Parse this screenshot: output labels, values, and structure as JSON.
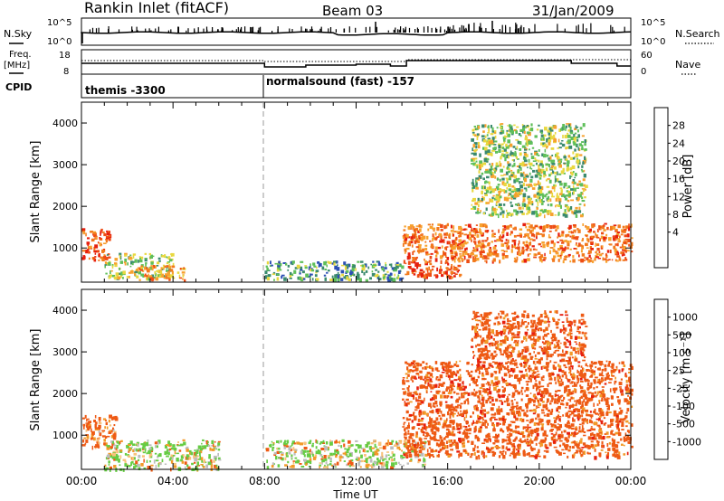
{
  "header": {
    "station": "Rankin Inlet (fitACF)",
    "beam": "Beam 03",
    "date": "31/Jan/2009"
  },
  "nsky_panel": {
    "left_label": "N.Sky",
    "left_ticks": [
      "10^5",
      "10^0"
    ],
    "right_ticks": [
      "10^5",
      "10^0"
    ],
    "right_label": "N.Search"
  },
  "freq_panel": {
    "left_label_1": "Freq.",
    "left_label_2": "[MHz]",
    "left_ticks": [
      "18",
      "8"
    ],
    "right_ticks": [
      "60",
      "0"
    ],
    "right_label": "Nave"
  },
  "cpid_panel": {
    "label": "CPID",
    "modes": [
      {
        "name": "themis -3300",
        "start_hour": 0
      },
      {
        "name": "normalsound (fast) -157",
        "start_hour": 8
      }
    ]
  },
  "colors": {
    "power": [
      "#1a1aff",
      "#2c4fb5",
      "#3b8a6e",
      "#5fbf5a",
      "#e8d840",
      "#f7a12e",
      "#f27a1d",
      "#ee4d14",
      "#e61f0e"
    ],
    "velocity": [
      "#e61f0e",
      "#ee5a14",
      "#f29a28",
      "#f8c27a",
      "#bdbdbd",
      "#66cc44",
      "#3a9a6e",
      "#2c5fb5",
      "#1a1aff"
    ]
  },
  "chart_data": [
    {
      "type": "heatmap",
      "title": "Power",
      "xlabel": "Time UT",
      "ylabel": "Slant Range [km]",
      "xlim": [
        0,
        24
      ],
      "ylim": [
        180,
        4500
      ],
      "x_ticks": [
        "00:00",
        "04:00",
        "08:00",
        "12:00",
        "16:00",
        "20:00",
        "00:00"
      ],
      "y_ticks": [
        1000,
        2000,
        3000,
        4000
      ],
      "colorbar": {
        "label": "Power [dB]",
        "ticks": [
          "28",
          "24",
          "20",
          "16",
          "12",
          "8",
          "4"
        ],
        "range": [
          0,
          32
        ]
      },
      "echo_regions": [
        {
          "t": [
            0,
            1.2
          ],
          "range_km": [
            700,
            1500
          ],
          "level": 26
        },
        {
          "t": [
            1,
            4
          ],
          "range_km": [
            300,
            900
          ],
          "level": 14
        },
        {
          "t": [
            2.5,
            4.5
          ],
          "range_km": [
            250,
            600
          ],
          "level": 22
        },
        {
          "t": [
            8,
            14
          ],
          "range_km": [
            250,
            700
          ],
          "level": 10
        },
        {
          "t": [
            14,
            16.5
          ],
          "range_km": [
            300,
            700
          ],
          "level": 28
        },
        {
          "t": [
            14,
            24
          ],
          "range_km": [
            700,
            1600
          ],
          "level": 24
        },
        {
          "t": [
            17,
            22
          ],
          "range_km": [
            1800,
            4000
          ],
          "level": 14
        }
      ]
    },
    {
      "type": "heatmap",
      "title": "Velocity",
      "xlabel": "Time UT",
      "ylabel": "Slant Range [km]",
      "xlim": [
        0,
        24
      ],
      "ylim": [
        180,
        4500
      ],
      "x_ticks": [
        "00:00",
        "04:00",
        "08:00",
        "12:00",
        "16:00",
        "20:00",
        "00:00"
      ],
      "y_ticks": [
        1000,
        2000,
        3000,
        4000
      ],
      "colorbar": {
        "label": "Velocity [m s⁻¹]",
        "ticks": [
          "1000",
          "500",
          "100",
          "25",
          "-25",
          "-100",
          "-500",
          "-1000"
        ],
        "range": [
          -1000,
          1000
        ]
      },
      "echo_regions": [
        {
          "t": [
            0,
            1.5
          ],
          "range_km": [
            700,
            1500
          ],
          "velocity": -200
        },
        {
          "t": [
            1,
            6
          ],
          "range_km": [
            200,
            900
          ],
          "velocity": 100
        },
        {
          "t": [
            8,
            15
          ],
          "range_km": [
            250,
            900
          ],
          "velocity": 80
        },
        {
          "t": [
            14,
            24
          ],
          "range_km": [
            500,
            2800
          ],
          "velocity": -300
        },
        {
          "t": [
            17,
            22
          ],
          "range_km": [
            2800,
            4000
          ],
          "velocity": -300
        }
      ]
    }
  ]
}
